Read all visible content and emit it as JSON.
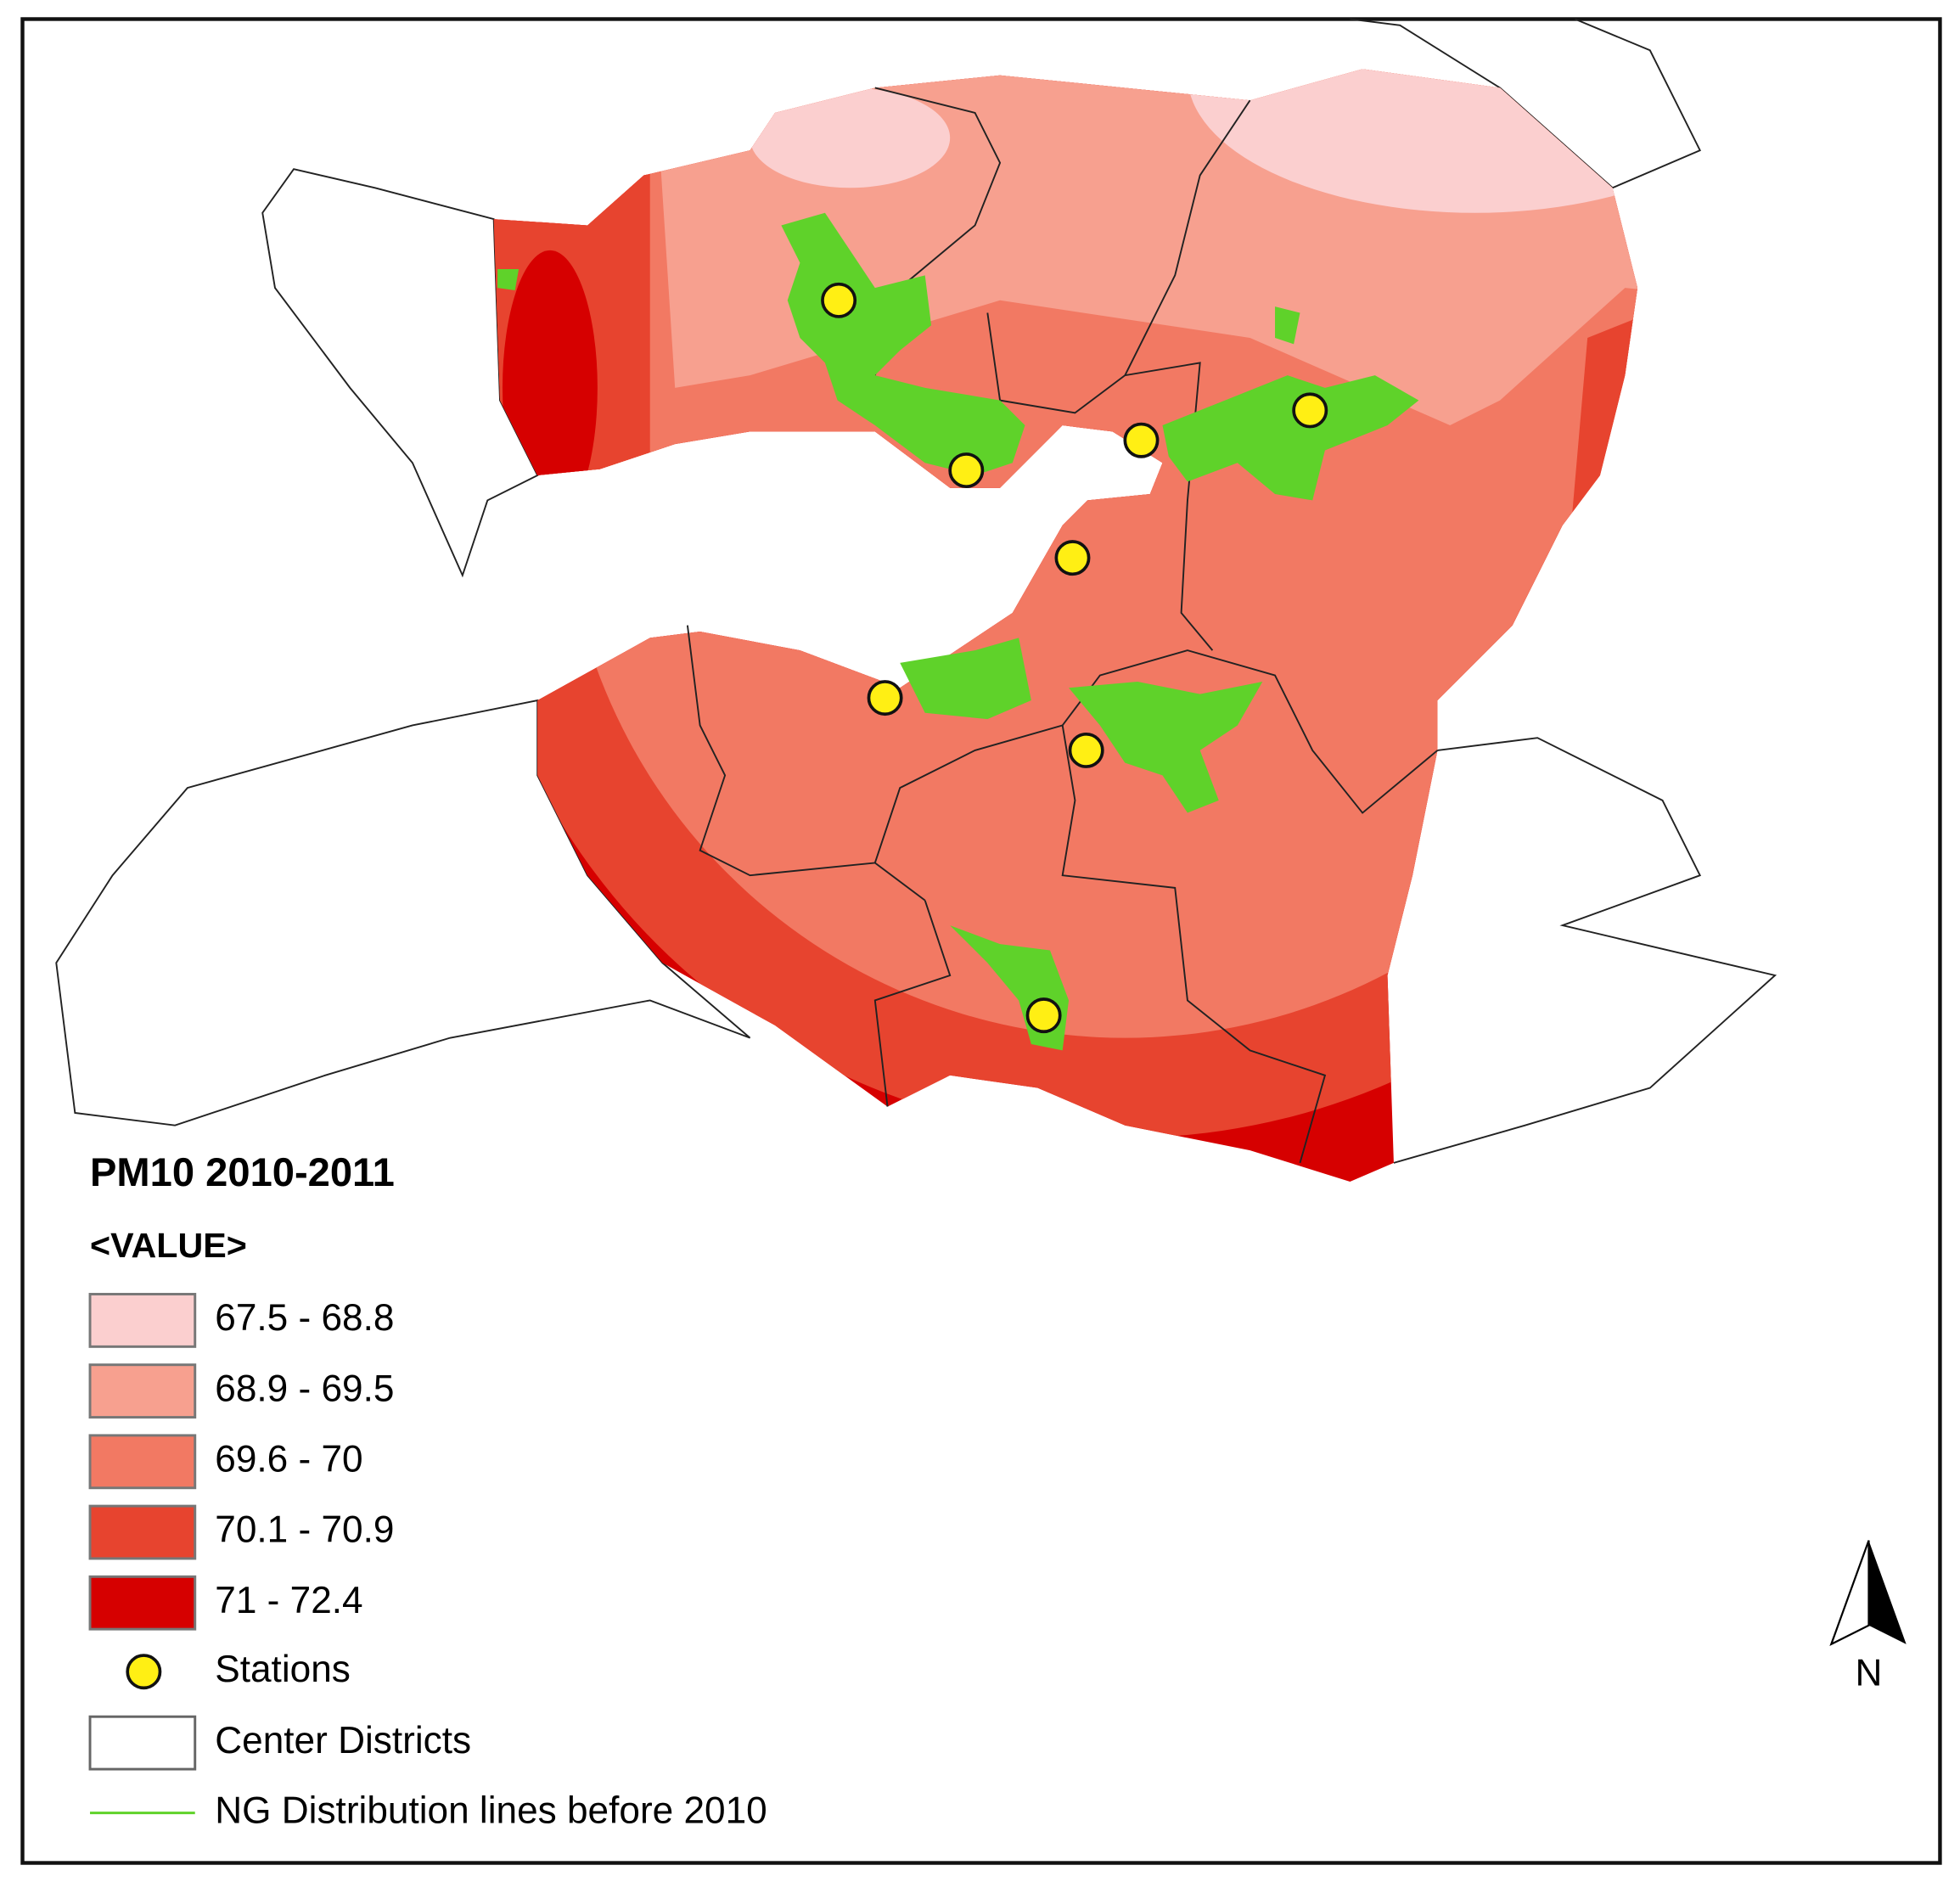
{
  "legend": {
    "title": "PM10 2010-2011",
    "subtitle": "<VALUE>",
    "classes": [
      {
        "label": "67.5 - 68.8",
        "color": "#fbcfcf"
      },
      {
        "label": "68.9 - 69.5",
        "color": "#f7a08f"
      },
      {
        "label": "69.6 - 70",
        "color": "#f27963"
      },
      {
        "label": "70.1 - 70.9",
        "color": "#e7442f"
      },
      {
        "label": "71 - 72.4",
        "color": "#d60000"
      }
    ],
    "stations": "Stations",
    "districts": "Center Districts",
    "lines": "NG Distribution lines before 2010"
  },
  "north_arrow": "N"
}
